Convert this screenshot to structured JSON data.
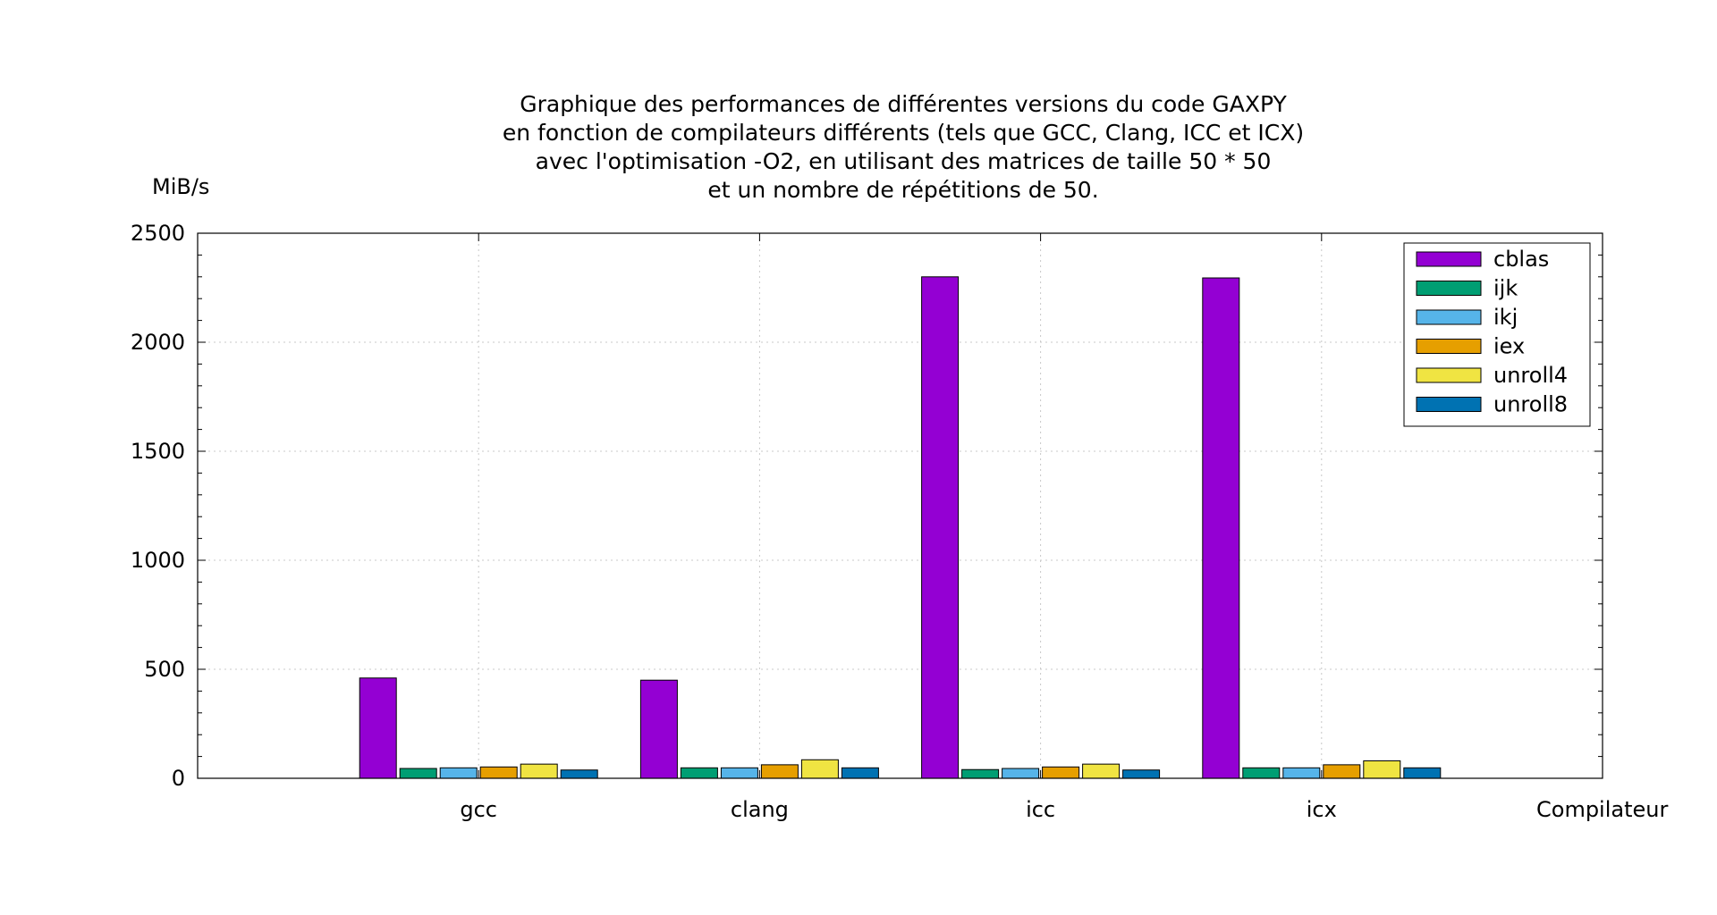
{
  "chart_data": {
    "type": "bar",
    "title": [
      "Graphique des performances de différentes versions du code GAXPY",
      "en fonction de compilateurs différents (tels que GCC, Clang, ICC et ICX)",
      "avec l'optimisation -O2, en utilisant des matrices de taille 50 * 50",
      "et un nombre de répétitions de 50."
    ],
    "xlabel": "Compilateur",
    "ylabel": "MiB/s",
    "ylim": [
      0,
      2500
    ],
    "yticks": [
      0,
      500,
      1000,
      1500,
      2000,
      2500
    ],
    "grid": true,
    "legend_position": "top-right",
    "categories": [
      "gcc",
      "clang",
      "icc",
      "icx"
    ],
    "series": [
      {
        "name": "cblas",
        "color": "#9400d3",
        "values": [
          460,
          450,
          2300,
          2295
        ]
      },
      {
        "name": "ijk",
        "color": "#009e73",
        "values": [
          45,
          48,
          40,
          48
        ]
      },
      {
        "name": "ikj",
        "color": "#56b4e9",
        "values": [
          48,
          48,
          45,
          48
        ]
      },
      {
        "name": "iex",
        "color": "#e69f00",
        "values": [
          52,
          62,
          52,
          62
        ]
      },
      {
        "name": "unroll4",
        "color": "#f0e442",
        "values": [
          65,
          85,
          65,
          80
        ]
      },
      {
        "name": "unroll8",
        "color": "#0072b2",
        "values": [
          38,
          48,
          38,
          48
        ]
      }
    ]
  }
}
